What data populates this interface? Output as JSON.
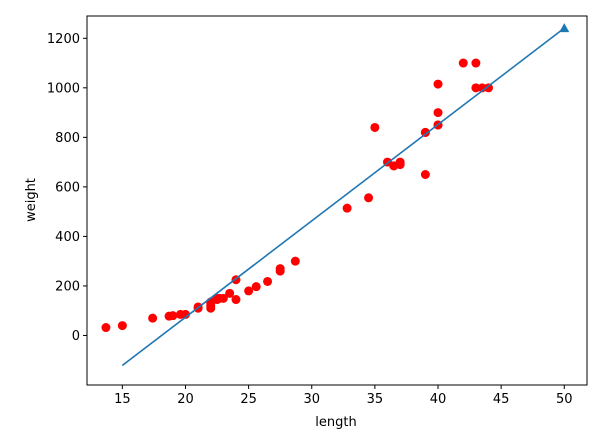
{
  "chart_data": {
    "type": "scatter",
    "title": "",
    "xlabel": "length",
    "ylabel": "weight",
    "xlim": [
      12.2,
      51.8
    ],
    "ylim": [
      -200,
      1290
    ],
    "xticks": [
      15,
      20,
      25,
      30,
      35,
      40,
      45,
      50
    ],
    "yticks": [
      0,
      200,
      400,
      600,
      800,
      1000,
      1200
    ],
    "grid": false,
    "legend": "none",
    "series": [
      {
        "type": "scatter",
        "color": "#ff0000",
        "marker": "circle",
        "x": [
          13.7,
          15.0,
          17.4,
          18.7,
          19.0,
          19.6,
          20.0,
          21.0,
          21.0,
          22.0,
          22.0,
          22.0,
          22.0,
          22.5,
          22.5,
          22.7,
          23.0,
          23.5,
          24.0,
          24.0,
          25.0,
          25.6,
          26.5,
          27.5,
          27.5,
          28.7,
          32.8,
          34.5,
          35.0,
          36.0,
          36.5,
          36.5,
          37.0,
          37.0,
          39.0,
          39.0,
          39.0,
          40.0,
          40.0,
          40.0,
          40.0,
          42.0,
          43.0,
          43.0,
          43.5,
          44.0
        ],
        "y": [
          32,
          40,
          70,
          78,
          80,
          85,
          85,
          110,
          115,
          110,
          120,
          130,
          135,
          145,
          150,
          150,
          150,
          170,
          145,
          225,
          180,
          197,
          218,
          260,
          270,
          300,
          514,
          556,
          840,
          700,
          685,
          685,
          690,
          700,
          650,
          820,
          820,
          850,
          850,
          900,
          1015,
          1100,
          1000,
          1100,
          1000,
          1000
        ]
      },
      {
        "type": "line",
        "color": "#1f77b4",
        "x": [
          15,
          50
        ],
        "y": [
          -121,
          1241
        ]
      },
      {
        "type": "scatter",
        "color": "#1f77b4",
        "marker": "triangle",
        "x": [
          50
        ],
        "y": [
          1241
        ]
      }
    ]
  }
}
